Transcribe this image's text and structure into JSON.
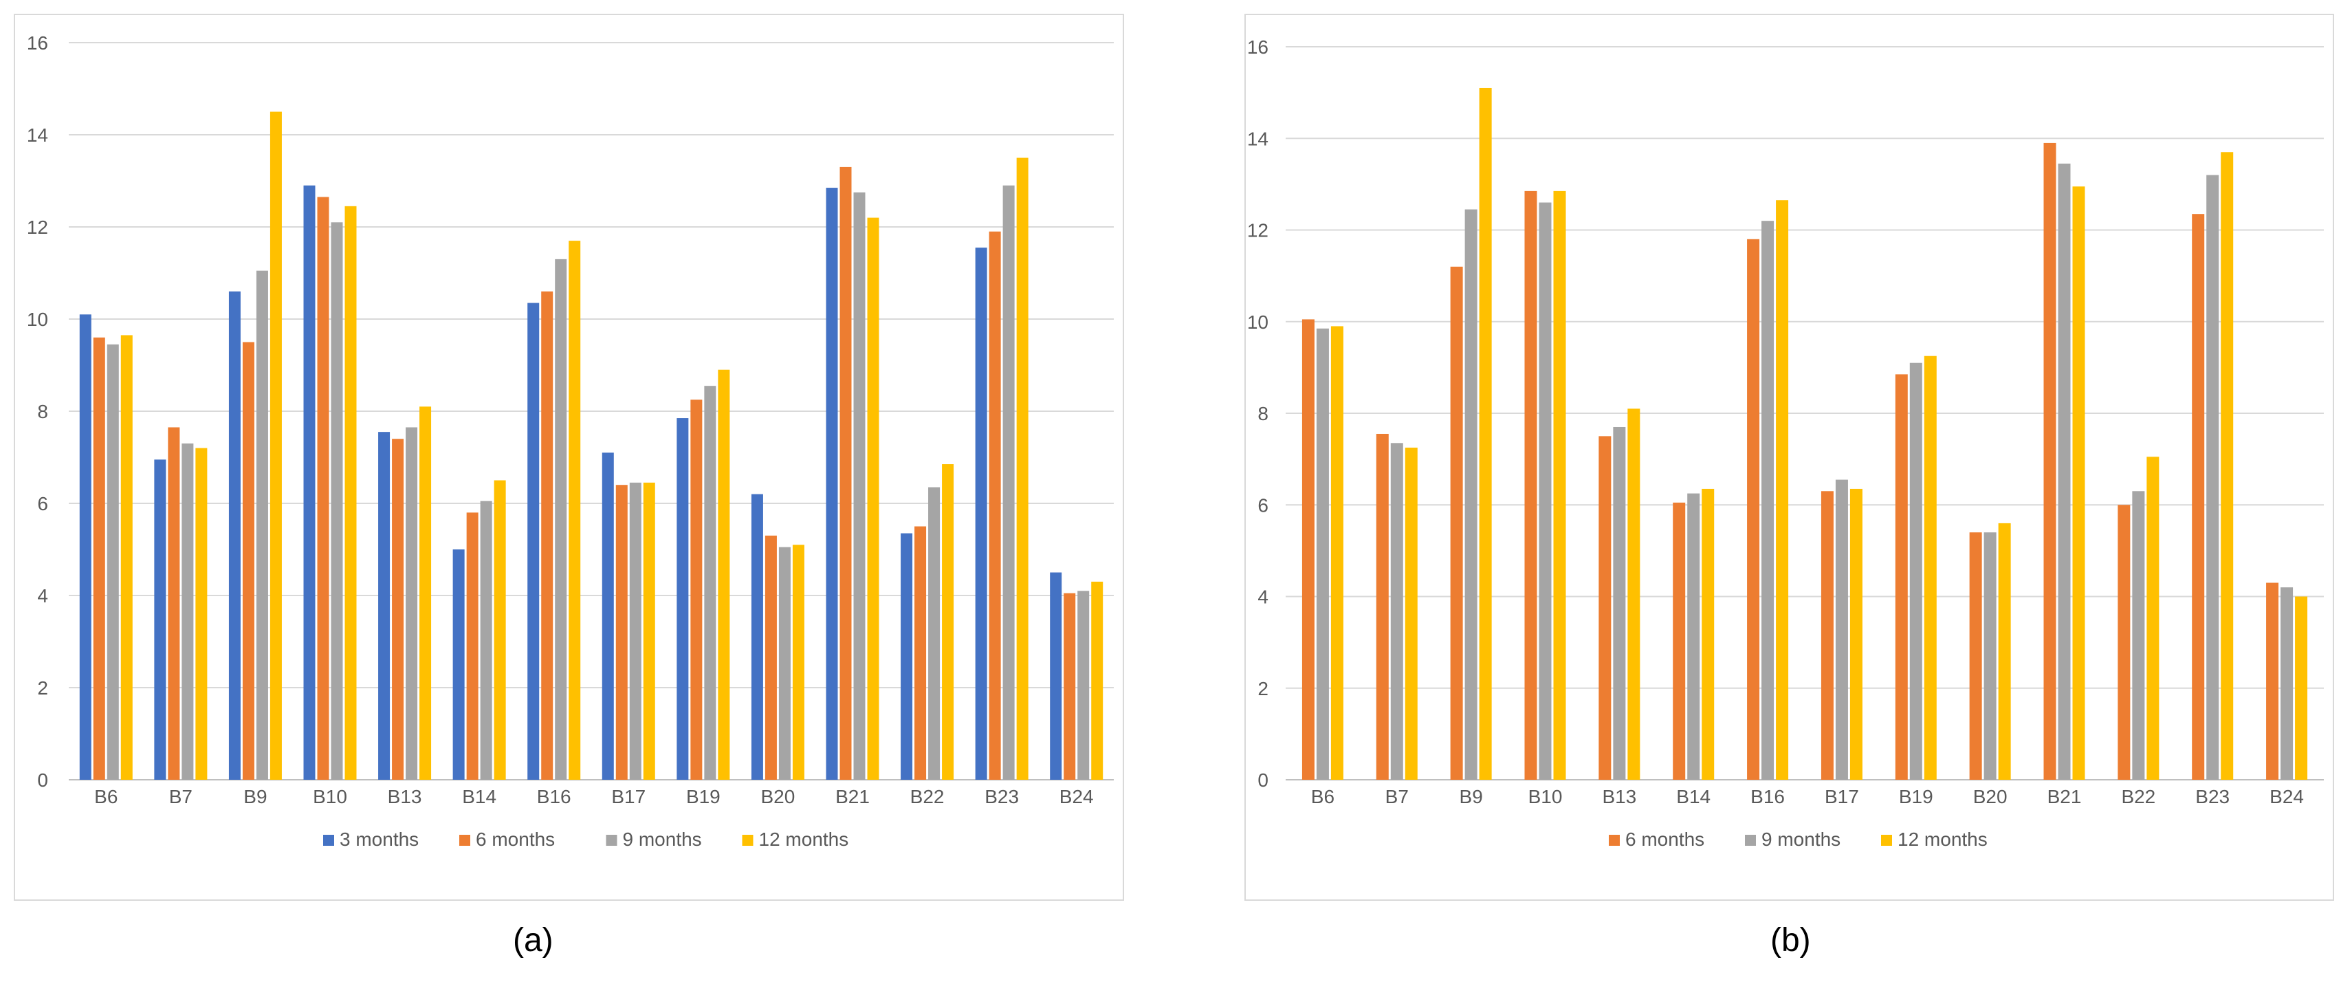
{
  "chart_data": [
    {
      "type": "bar",
      "panel": "(a)",
      "categories": [
        "B6",
        "B7",
        "B9",
        "B10",
        "B13",
        "B14",
        "B16",
        "B17",
        "B19",
        "B20",
        "B21",
        "B22",
        "B23",
        "B24"
      ],
      "series": [
        {
          "name": "3 months",
          "color": "#4472c4",
          "values": [
            10.1,
            6.95,
            10.6,
            12.9,
            7.55,
            5.0,
            10.35,
            7.1,
            7.85,
            6.2,
            12.85,
            5.35,
            11.55,
            4.5
          ]
        },
        {
          "name": "6  months",
          "color": "#ed7d31",
          "values": [
            9.6,
            7.65,
            9.5,
            12.65,
            7.4,
            5.8,
            10.6,
            6.4,
            8.25,
            5.3,
            13.3,
            5.5,
            11.9,
            4.05
          ]
        },
        {
          "name": "9 months",
          "color": "#a5a5a5",
          "values": [
            9.45,
            7.3,
            11.05,
            12.1,
            7.65,
            6.05,
            11.3,
            6.45,
            8.55,
            5.05,
            12.75,
            6.35,
            12.9,
            4.1
          ]
        },
        {
          "name": "12 months",
          "color": "#ffc000",
          "values": [
            9.65,
            7.2,
            14.5,
            12.45,
            8.1,
            6.5,
            11.7,
            6.45,
            8.9,
            5.1,
            12.2,
            6.85,
            13.5,
            4.3
          ]
        }
      ],
      "yticks": [
        "0",
        "2",
        "4",
        "6",
        "8",
        "10",
        "12",
        "14",
        "16"
      ],
      "ylim": [
        0,
        16
      ],
      "grid": true,
      "legend": "bottom"
    },
    {
      "type": "bar",
      "panel": "(b)",
      "categories": [
        "B6",
        "B7",
        "B9",
        "B10",
        "B13",
        "B14",
        "B16",
        "B17",
        "B19",
        "B20",
        "B21",
        "B22",
        "B23",
        "B24"
      ],
      "series": [
        {
          "name": "6 months",
          "color": "#ed7d31",
          "values": [
            10.05,
            7.55,
            11.2,
            12.85,
            7.5,
            6.05,
            11.8,
            6.3,
            8.85,
            5.4,
            13.9,
            6.0,
            12.35,
            4.3
          ]
        },
        {
          "name": "9 months",
          "color": "#a5a5a5",
          "values": [
            9.85,
            7.35,
            12.45,
            12.6,
            7.7,
            6.25,
            12.2,
            6.55,
            9.1,
            5.4,
            13.45,
            6.3,
            13.2,
            4.2
          ]
        },
        {
          "name": "12 months",
          "color": "#ffc000",
          "values": [
            9.9,
            7.25,
            15.1,
            12.85,
            8.1,
            6.35,
            12.65,
            6.35,
            9.25,
            5.6,
            12.95,
            7.05,
            13.7,
            4.0
          ]
        }
      ],
      "yticks": [
        "0",
        "2",
        "4",
        "6",
        "8",
        "10",
        "12",
        "14",
        "16"
      ],
      "ylim": [
        0,
        16
      ],
      "grid": true,
      "legend": "bottom"
    }
  ],
  "captions": {
    "a": "(a)",
    "b": "(b)"
  },
  "colors": {
    "gridline": "#d9d9d9",
    "axis": "#bfbfbf",
    "text": "#595959"
  }
}
